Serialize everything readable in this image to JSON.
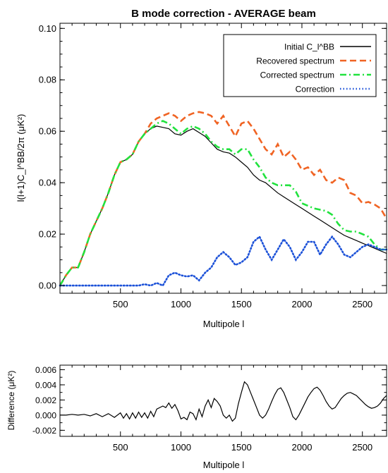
{
  "chart_data": [
    {
      "type": "line",
      "title": "B mode correction - AVERAGE beam",
      "xlabel": "Multipole l",
      "ylabel": "l(l+1)C_l^BB/2π (μK²)",
      "xlim": [
        0,
        2700
      ],
      "ylim": [
        -0.003,
        0.102
      ],
      "xticks": [
        500,
        1000,
        1500,
        2000,
        2500
      ],
      "yticks": [
        0.0,
        0.02,
        0.04,
        0.06,
        0.08,
        0.1
      ],
      "xtick_labels": [
        "500",
        "1000",
        "1500",
        "2000",
        "2500"
      ],
      "ytick_labels": [
        "0.00",
        "0.02",
        "0.04",
        "0.06",
        "0.08",
        "0.10"
      ],
      "legend_position": "top-right",
      "series": [
        {
          "name": "Initial C_l^BB",
          "color": "#000000",
          "style": "solid",
          "x": [
            0,
            50,
            100,
            150,
            200,
            250,
            300,
            350,
            400,
            450,
            500,
            550,
            600,
            650,
            700,
            750,
            800,
            850,
            900,
            950,
            1000,
            1050,
            1100,
            1150,
            1200,
            1250,
            1300,
            1350,
            1400,
            1450,
            1500,
            1550,
            1600,
            1650,
            1700,
            1750,
            1800,
            1850,
            1900,
            1950,
            2000,
            2050,
            2100,
            2150,
            2200,
            2250,
            2300,
            2350,
            2400,
            2450,
            2500,
            2550,
            2600,
            2650,
            2700
          ],
          "values": [
            0.0,
            0.004,
            0.007,
            0.007,
            0.013,
            0.02,
            0.025,
            0.03,
            0.036,
            0.043,
            0.048,
            0.049,
            0.051,
            0.056,
            0.059,
            0.061,
            0.062,
            0.0615,
            0.061,
            0.059,
            0.0585,
            0.06,
            0.061,
            0.0595,
            0.058,
            0.0555,
            0.053,
            0.052,
            0.0515,
            0.05,
            0.048,
            0.046,
            0.043,
            0.041,
            0.04,
            0.038,
            0.036,
            0.0345,
            0.033,
            0.0315,
            0.03,
            0.0285,
            0.027,
            0.0255,
            0.024,
            0.0225,
            0.021,
            0.0195,
            0.0185,
            0.0175,
            0.0165,
            0.0155,
            0.0145,
            0.0135,
            0.0125
          ]
        },
        {
          "name": "Recovered spectrum",
          "color": "#f06424",
          "style": "dashed",
          "x": [
            0,
            50,
            100,
            150,
            200,
            250,
            300,
            350,
            400,
            450,
            500,
            550,
            600,
            650,
            700,
            750,
            800,
            850,
            900,
            950,
            1000,
            1050,
            1100,
            1150,
            1200,
            1250,
            1300,
            1350,
            1400,
            1450,
            1500,
            1550,
            1600,
            1650,
            1700,
            1750,
            1800,
            1850,
            1900,
            1950,
            2000,
            2050,
            2100,
            2150,
            2200,
            2250,
            2300,
            2350,
            2400,
            2450,
            2500,
            2550,
            2600,
            2650,
            2700
          ],
          "values": [
            0.0,
            0.004,
            0.007,
            0.007,
            0.013,
            0.02,
            0.025,
            0.03,
            0.036,
            0.043,
            0.048,
            0.049,
            0.051,
            0.056,
            0.059,
            0.063,
            0.065,
            0.066,
            0.067,
            0.066,
            0.064,
            0.066,
            0.067,
            0.0675,
            0.067,
            0.066,
            0.063,
            0.066,
            0.062,
            0.058,
            0.063,
            0.064,
            0.061,
            0.057,
            0.053,
            0.051,
            0.055,
            0.05,
            0.052,
            0.049,
            0.045,
            0.046,
            0.043,
            0.045,
            0.041,
            0.04,
            0.042,
            0.041,
            0.036,
            0.035,
            0.032,
            0.0325,
            0.0315,
            0.03,
            0.026
          ]
        },
        {
          "name": "Corrected spectrum",
          "color": "#21e23e",
          "style": "dashdot",
          "x": [
            0,
            50,
            100,
            150,
            200,
            250,
            300,
            350,
            400,
            450,
            500,
            550,
            600,
            650,
            700,
            750,
            800,
            850,
            900,
            950,
            1000,
            1050,
            1100,
            1150,
            1200,
            1250,
            1300,
            1350,
            1400,
            1450,
            1500,
            1550,
            1600,
            1650,
            1700,
            1750,
            1800,
            1850,
            1900,
            1950,
            2000,
            2050,
            2100,
            2150,
            2200,
            2250,
            2300,
            2350,
            2400,
            2450,
            2500,
            2550,
            2600,
            2650,
            2700
          ],
          "values": [
            0.0,
            0.004,
            0.007,
            0.007,
            0.013,
            0.02,
            0.025,
            0.03,
            0.036,
            0.043,
            0.048,
            0.049,
            0.051,
            0.056,
            0.059,
            0.061,
            0.063,
            0.064,
            0.063,
            0.061,
            0.059,
            0.061,
            0.062,
            0.061,
            0.059,
            0.056,
            0.054,
            0.053,
            0.053,
            0.051,
            0.053,
            0.053,
            0.049,
            0.046,
            0.042,
            0.04,
            0.039,
            0.039,
            0.039,
            0.0365,
            0.032,
            0.031,
            0.03,
            0.0295,
            0.029,
            0.0275,
            0.024,
            0.0215,
            0.021,
            0.021,
            0.02,
            0.019,
            0.016,
            0.014,
            0.014
          ]
        },
        {
          "name": "Correction",
          "color": "#1d52d8",
          "style": "dotted",
          "x": [
            0,
            100,
            200,
            300,
            400,
            500,
            550,
            600,
            650,
            700,
            750,
            800,
            850,
            900,
            950,
            1000,
            1050,
            1100,
            1150,
            1200,
            1250,
            1300,
            1350,
            1400,
            1450,
            1500,
            1550,
            1600,
            1650,
            1700,
            1750,
            1800,
            1850,
            1900,
            1950,
            2000,
            2050,
            2100,
            2150,
            2200,
            2250,
            2300,
            2350,
            2400,
            2450,
            2500,
            2550,
            2600,
            2650,
            2700
          ],
          "values": [
            0.0,
            0.0,
            0.0,
            0.0,
            0.0,
            0.0,
            0.0,
            0.0,
            0.0,
            0.0005,
            0.0,
            0.001,
            0.0,
            0.004,
            0.005,
            0.004,
            0.0035,
            0.004,
            0.002,
            0.005,
            0.007,
            0.011,
            0.013,
            0.011,
            0.008,
            0.009,
            0.011,
            0.017,
            0.019,
            0.014,
            0.01,
            0.014,
            0.018,
            0.015,
            0.01,
            0.013,
            0.017,
            0.017,
            0.012,
            0.016,
            0.019,
            0.016,
            0.012,
            0.011,
            0.013,
            0.015,
            0.016,
            0.015,
            0.014,
            0.014
          ]
        }
      ]
    },
    {
      "type": "line",
      "title": "",
      "xlabel": "Multipole l",
      "ylabel": "Difference (μK²)",
      "xlim": [
        0,
        2700
      ],
      "ylim": [
        -0.0028,
        0.0066
      ],
      "xticks": [
        500,
        1000,
        1500,
        2000,
        2500
      ],
      "yticks": [
        -0.002,
        0.0,
        0.002,
        0.004,
        0.006
      ],
      "xtick_labels": [
        "500",
        "1000",
        "1500",
        "2000",
        "2500"
      ],
      "ytick_labels": [
        "-0.002",
        "0.000",
        "0.002",
        "0.004",
        "0.006"
      ],
      "series": [
        {
          "color": "#000000",
          "style": "solid",
          "x": [
            0,
            50,
            100,
            150,
            200,
            250,
            300,
            350,
            400,
            450,
            500,
            525,
            550,
            575,
            600,
            625,
            650,
            675,
            700,
            725,
            750,
            775,
            800,
            850,
            875,
            900,
            925,
            950,
            975,
            1000,
            1025,
            1050,
            1075,
            1100,
            1125,
            1150,
            1175,
            1200,
            1225,
            1250,
            1275,
            1300,
            1325,
            1350,
            1375,
            1400,
            1425,
            1450,
            1475,
            1500,
            1525,
            1550,
            1575,
            1600,
            1625,
            1650,
            1675,
            1700,
            1725,
            1750,
            1775,
            1800,
            1825,
            1850,
            1875,
            1900,
            1925,
            1950,
            1975,
            2000,
            2025,
            2050,
            2075,
            2100,
            2125,
            2150,
            2175,
            2200,
            2225,
            2250,
            2275,
            2300,
            2325,
            2350,
            2375,
            2400,
            2425,
            2450,
            2475,
            2500,
            2525,
            2550,
            2575,
            2600,
            2625,
            2650,
            2675,
            2700
          ],
          "values": [
            0.0,
            0.0,
            0.0001,
            0.0,
            0.0001,
            -0.0001,
            0.0002,
            -0.0002,
            0.0002,
            -0.0003,
            0.0003,
            -0.0004,
            0.0002,
            -0.0005,
            0.0003,
            -0.0004,
            0.0004,
            -0.0003,
            0.0003,
            -0.0004,
            0.0005,
            -0.0002,
            0.0008,
            0.0012,
            0.001,
            0.0016,
            0.0009,
            0.0014,
            0.0006,
            -0.0005,
            -0.0003,
            -0.0006,
            0.0004,
            0.0002,
            -0.0006,
            0.0008,
            -0.0002,
            0.0012,
            0.002,
            0.001,
            0.0022,
            0.0018,
            0.0012,
            0.0,
            -0.0004,
            0.0,
            -0.0008,
            -0.0004,
            0.0015,
            0.003,
            0.0044,
            0.004,
            0.003,
            0.002,
            0.001,
            0.0,
            -0.0004,
            0.0,
            0.0008,
            0.0018,
            0.0027,
            0.0034,
            0.0036,
            0.003,
            0.002,
            0.001,
            -0.0002,
            -0.0006,
            0.0,
            0.0008,
            0.0016,
            0.0024,
            0.003,
            0.0035,
            0.0037,
            0.0033,
            0.0026,
            0.0018,
            0.0012,
            0.0008,
            0.001,
            0.0016,
            0.0022,
            0.0026,
            0.0029,
            0.003,
            0.0028,
            0.0026,
            0.0022,
            0.0018,
            0.0014,
            0.0011,
            0.0009,
            0.001,
            0.0012,
            0.0016,
            0.0022,
            0.0026
          ]
        }
      ]
    }
  ]
}
